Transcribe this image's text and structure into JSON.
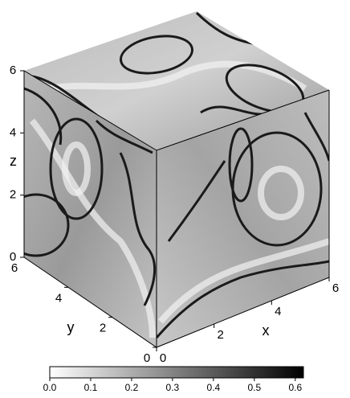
{
  "chart_data": {
    "type": "cube",
    "xlabel": "x",
    "ylabel": "y",
    "zlabel": "z",
    "xlim": [
      0,
      6
    ],
    "xticks": [
      0,
      2,
      4,
      6
    ],
    "ylim": [
      0,
      6
    ],
    "yticks": [
      0,
      2,
      4,
      6
    ],
    "zlim": [
      0,
      6
    ],
    "zticks": [
      0,
      2,
      4,
      6
    ],
    "colorbar": {
      "lim": [
        0,
        0.62
      ],
      "colors": [
        "#ffffff",
        "#000000"
      ],
      "ticks": [
        {
          "value": 0,
          "label": "0.0"
        },
        0.1,
        0.2,
        0.3,
        0.4,
        0.5,
        0.6
      ]
    }
  }
}
